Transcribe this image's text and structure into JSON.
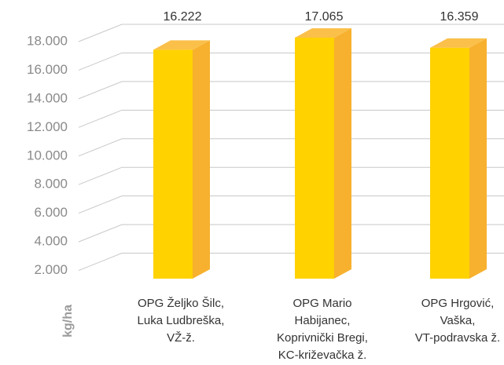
{
  "chart_data": {
    "type": "bar",
    "ylabel": "kg/ha",
    "categories": [
      "OPG Željko Šilc,\nLuka Ludbreška,\nVŽ-ž.",
      "OPG Mario\nHabijanec,\nKoprivnički Bregi,\nKC-križevačka ž.",
      "OPG Hrgović,\nVaška,\nVT-podravska ž."
    ],
    "values": [
      16222,
      17065,
      16359
    ],
    "value_labels": [
      "16.222",
      "17.065",
      "16.359"
    ],
    "color": "#FFD200",
    "ylim": [
      0,
      18000
    ],
    "yticks": [
      {
        "value": 2000,
        "label": "2.000"
      },
      {
        "value": 4000,
        "label": "4.000"
      },
      {
        "value": 6000,
        "label": "6.000"
      },
      {
        "value": 8000,
        "label": "8.000"
      },
      {
        "value": 10000,
        "label": "10.000"
      },
      {
        "value": 12000,
        "label": "12.000"
      },
      {
        "value": 14000,
        "label": "14.000"
      },
      {
        "value": 16000,
        "label": "16.000"
      },
      {
        "value": 18000,
        "label": "18.000"
      }
    ],
    "grid": true
  }
}
